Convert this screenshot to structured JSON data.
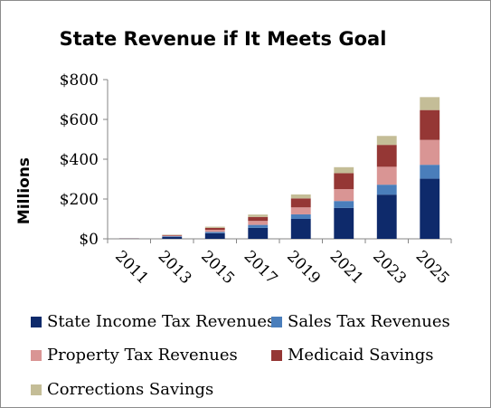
{
  "chart_data": {
    "type": "bar",
    "stacked": true,
    "title": "State Revenue if It Meets Goal",
    "ylabel": "Millions",
    "xlabel": "",
    "categories": [
      "2011",
      "2013",
      "2015",
      "2017",
      "2019",
      "2021",
      "2023",
      "2025"
    ],
    "ylim": [
      0,
      800
    ],
    "yticks": [
      "$0",
      "$200",
      "$400",
      "$600",
      "$800"
    ],
    "ytick_values": [
      0,
      200,
      400,
      600,
      800
    ],
    "grid": false,
    "legend_placement": "bottom",
    "series": [
      {
        "name": "State Income Tax Revenues",
        "color": "#0e2a6b",
        "values": [
          1,
          10,
          28,
          55,
          100,
          155,
          222,
          302
        ]
      },
      {
        "name": "Sales Tax Revenues",
        "color": "#4a7ebb",
        "values": [
          0.5,
          3,
          7,
          15,
          23,
          35,
          50,
          70
        ]
      },
      {
        "name": "Property Tax Revenues",
        "color": "#d99594",
        "values": [
          0.5,
          3,
          10,
          20,
          35,
          60,
          90,
          125
        ]
      },
      {
        "name": "Medicaid Savings",
        "color": "#953735",
        "values": [
          0.5,
          3,
          10,
          20,
          45,
          80,
          110,
          150
        ]
      },
      {
        "name": "Corrections Savings",
        "color": "#c4bd97",
        "values": [
          0.5,
          2,
          6,
          12,
          20,
          30,
          45,
          65
        ]
      }
    ]
  }
}
